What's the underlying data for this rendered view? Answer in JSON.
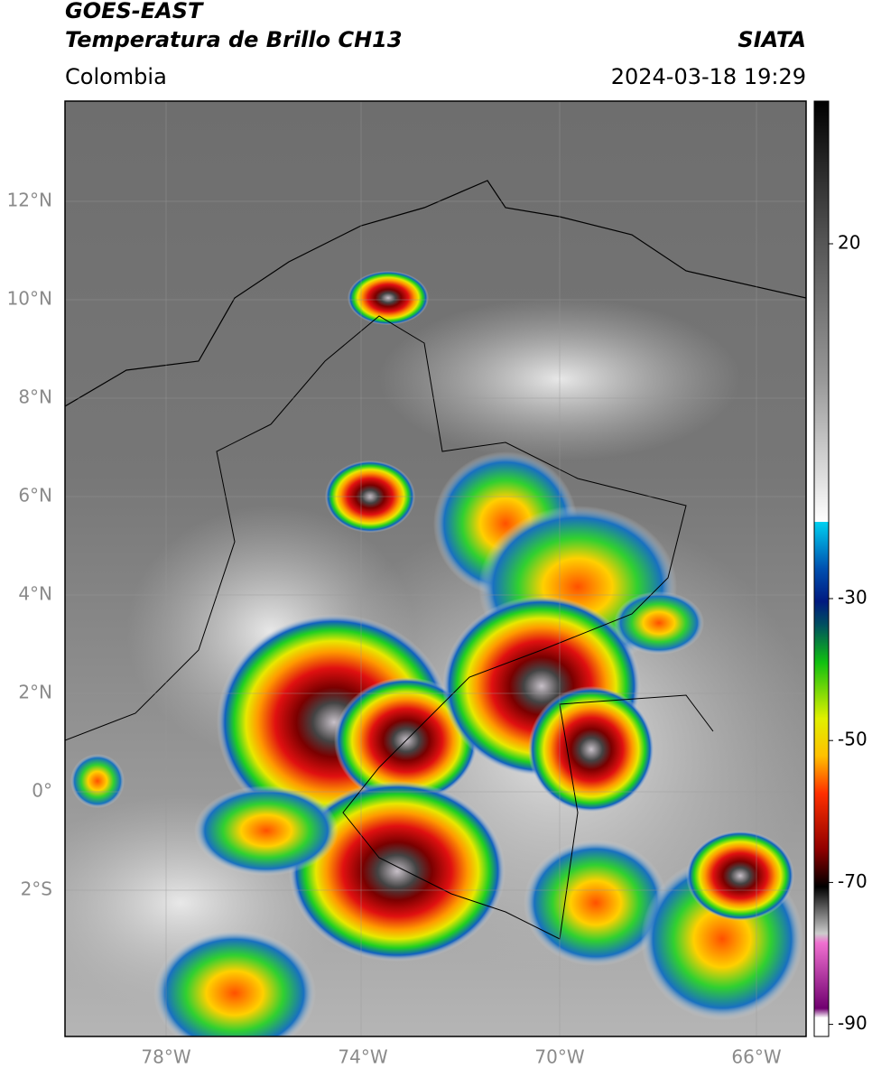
{
  "header": {
    "title_line1": "GOES-EAST",
    "title_line2": "Temperatura de Brillo CH13",
    "source": "SIATA",
    "region": "Colombia",
    "datetime": "2024-03-18 19:29"
  },
  "map": {
    "lat_labels": [
      "12°N",
      "10°N",
      "8°N",
      "6°N",
      "4°N",
      "2°N",
      "0°",
      "2°S"
    ],
    "lon_labels": [
      "78°W",
      "74°W",
      "70°W",
      "66°W"
    ]
  },
  "colorbar": {
    "ticks": [
      20,
      -30,
      -50,
      -70,
      -90
    ]
  }
}
